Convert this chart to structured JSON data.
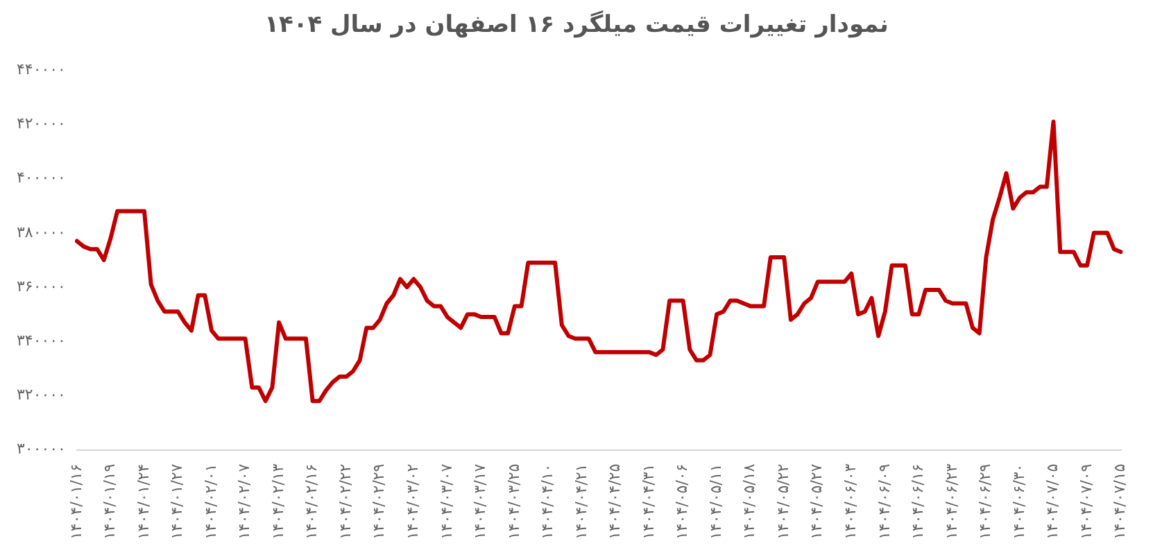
{
  "chart_data": {
    "type": "line",
    "title": "نمودار تغییرات قیمت میلگرد ۱۶ اصفهان در سال ۱۴۰۴",
    "categories": [
      "۱۴۰۴/۰۱/۱۶",
      null,
      null,
      null,
      null,
      "۱۴۰۴/۰۱/۱۹",
      null,
      null,
      null,
      null,
      "۱۴۰۴/۰۱/۲۴",
      null,
      null,
      null,
      null,
      "۱۴۰۴/۰۱/۲۷",
      null,
      null,
      null,
      null,
      "۱۴۰۴/۰۲/۰۱",
      null,
      null,
      null,
      null,
      "۱۴۰۴/۰۲/۰۷",
      null,
      null,
      null,
      null,
      "۱۴۰۴/۰۲/۱۳",
      null,
      null,
      null,
      null,
      "۱۴۰۴/۰۲/۱۶",
      null,
      null,
      null,
      null,
      "۱۴۰۴/۰۲/۲۲",
      null,
      null,
      null,
      null,
      "۱۴۰۴/۰۲/۲۹",
      null,
      null,
      null,
      null,
      "۱۴۰۴/۰۳/۰۲",
      null,
      null,
      null,
      null,
      "۱۴۰۴/۰۳/۰۷",
      null,
      null,
      null,
      null,
      "۱۴۰۴/۰۳/۱۷",
      null,
      null,
      null,
      null,
      "۱۴۰۴/۰۳/۲۵",
      null,
      null,
      null,
      null,
      "۱۴۰۴/۰۴/۱۰",
      null,
      null,
      null,
      null,
      "۱۴۰۴/۰۴/۲۱",
      null,
      null,
      null,
      null,
      "۱۴۰۴/۰۴/۲۵",
      null,
      null,
      null,
      null,
      "۱۴۰۴/۰۴/۳۱",
      null,
      null,
      null,
      null,
      "۱۴۰۴/۰۵/۰۶",
      null,
      null,
      null,
      null,
      "۱۴۰۴/۰۵/۱۱",
      null,
      null,
      null,
      null,
      "۱۴۰۴/۰۵/۱۸",
      null,
      null,
      null,
      null,
      "۱۴۰۴/۰۵/۲۲",
      null,
      null,
      null,
      null,
      "۱۴۰۴/۰۵/۲۷",
      null,
      null,
      null,
      null,
      "۱۴۰۴/۰۶/۰۳",
      null,
      null,
      null,
      null,
      "۱۴۰۴/۰۶/۰۹",
      null,
      null,
      null,
      null,
      "۱۴۰۴/۰۶/۱۶",
      null,
      null,
      null,
      null,
      "۱۴۰۴/۰۶/۲۳",
      null,
      null,
      null,
      null,
      "۱۴۰۴/۰۶/۲۹",
      null,
      null,
      null,
      null,
      "۱۴۰۴/۰۶/۳۰",
      null,
      null,
      null,
      null,
      "۱۴۰۴/۰۷/۰۵",
      null,
      null,
      null,
      null,
      "۱۴۰۴/۰۷/۰۹",
      null,
      null,
      null,
      null,
      "۱۴۰۴/۰۷/۱۵"
    ],
    "series": [
      {
        "color": "#c00000",
        "values": [
          377000,
          375000,
          374000,
          374000,
          370000,
          378000,
          388000,
          388000,
          388000,
          388000,
          388000,
          361000,
          355000,
          351000,
          351000,
          351000,
          347000,
          344000,
          357000,
          357000,
          344000,
          341000,
          341000,
          341000,
          341000,
          341000,
          323000,
          323000,
          318000,
          323000,
          347000,
          341000,
          341000,
          341000,
          341000,
          318000,
          318000,
          322000,
          325000,
          327000,
          327000,
          329000,
          333000,
          345000,
          345000,
          348000,
          354000,
          357000,
          363000,
          360000,
          363000,
          360000,
          355000,
          353000,
          353000,
          349000,
          347000,
          345000,
          350000,
          350000,
          349000,
          349000,
          349000,
          343000,
          343000,
          353000,
          353000,
          369000,
          369000,
          369000,
          369000,
          369000,
          346000,
          342000,
          341000,
          341000,
          341000,
          336000,
          336000,
          336000,
          336000,
          336000,
          336000,
          336000,
          336000,
          336000,
          335000,
          337000,
          355000,
          355000,
          355000,
          337000,
          333000,
          333000,
          335000,
          350000,
          351000,
          355000,
          355000,
          354000,
          353000,
          353000,
          353000,
          371000,
          371000,
          371000,
          348000,
          350000,
          354000,
          356000,
          362000,
          362000,
          362000,
          362000,
          362000,
          365000,
          350000,
          351000,
          356000,
          342000,
          351000,
          368000,
          368000,
          368000,
          350000,
          350000,
          359000,
          359000,
          359000,
          355000,
          354000,
          354000,
          354000,
          345000,
          343000,
          371000,
          385000,
          393000,
          402000,
          389000,
          393000,
          395000,
          395000,
          397000,
          397000,
          421000,
          373000,
          373000,
          373000,
          368000,
          368000,
          380000,
          380000,
          380000,
          374000,
          373000
        ]
      }
    ],
    "ylim": [
      300000,
      440000
    ],
    "yticks": [
      {
        "value": 300000,
        "label": "۳۰۰۰۰۰"
      },
      {
        "value": 320000,
        "label": "۳۲۰۰۰۰"
      },
      {
        "value": 340000,
        "label": "۳۴۰۰۰۰"
      },
      {
        "value": 360000,
        "label": "۳۶۰۰۰۰"
      },
      {
        "value": 380000,
        "label": "۳۸۰۰۰۰"
      },
      {
        "value": 400000,
        "label": "۴۰۰۰۰۰"
      },
      {
        "value": 420000,
        "label": "۴۲۰۰۰۰"
      },
      {
        "value": 440000,
        "label": "۴۴۰۰۰۰"
      }
    ],
    "grid": false,
    "legend": false,
    "marker": "none",
    "line_style": "solid"
  }
}
